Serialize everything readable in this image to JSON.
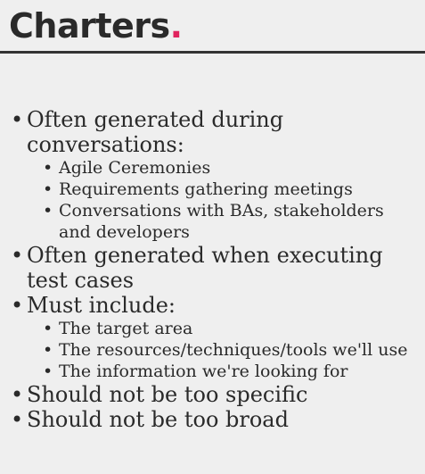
{
  "title": {
    "text": "Charters",
    "dot": "."
  },
  "bullets": [
    {
      "text": "Often generated during conversations:",
      "children": [
        "Agile Ceremonies",
        "Requirements gathering meetings",
        "Conversations with BAs, stakeholders and developers"
      ]
    },
    {
      "text": "Often generated when executing test cases",
      "children": []
    },
    {
      "text": "Must include:",
      "children": [
        "The target area",
        "The resources/techniques/tools we'll use",
        "The information we're looking for"
      ]
    },
    {
      "text": "Should not be too specific",
      "children": []
    },
    {
      "text": "Should not be too broad",
      "children": []
    }
  ],
  "colors": {
    "accent": "#e0245e",
    "background": "#efefef",
    "text": "#2a2a2a"
  }
}
